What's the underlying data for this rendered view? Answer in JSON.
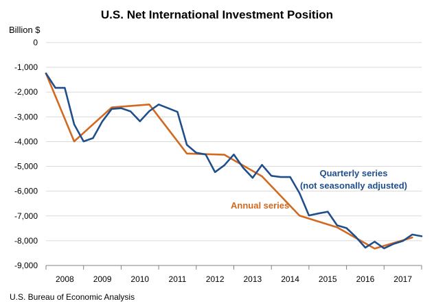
{
  "chart_data": {
    "type": "line",
    "title": "U.S. Net International Investment Position",
    "ylabel": "Billion $",
    "ylim": [
      -9000,
      0
    ],
    "yticks": [
      0,
      -1000,
      -2000,
      -3000,
      -4000,
      -5000,
      -6000,
      -7000,
      -8000,
      -9000
    ],
    "ytick_labels": [
      "0",
      "-1,000",
      "-2,000",
      "-3,000",
      "-4,000",
      "-5,000",
      "-6,000",
      "-7,000",
      "-8,000",
      "-9,000"
    ],
    "x_categories": [
      "2008",
      "2009",
      "2010",
      "2011",
      "2012",
      "2013",
      "2014",
      "2015",
      "2016",
      "2017"
    ],
    "x_range": [
      2008,
      2018
    ],
    "series": [
      {
        "name": "Quarterly series (not seasonally adjusted)",
        "label_lines": [
          "Quarterly series",
          "(not seasonally adjusted)"
        ],
        "color": "#1f4e8c",
        "x": [
          2008.0,
          2008.25,
          2008.5,
          2008.75,
          2009.0,
          2009.25,
          2009.5,
          2009.75,
          2010.0,
          2010.25,
          2010.5,
          2010.75,
          2011.0,
          2011.25,
          2011.5,
          2011.75,
          2012.0,
          2012.25,
          2012.5,
          2012.75,
          2013.0,
          2013.25,
          2013.5,
          2013.75,
          2014.0,
          2014.25,
          2014.5,
          2014.75,
          2015.0,
          2015.25,
          2015.5,
          2015.75,
          2016.0,
          2016.25,
          2016.5,
          2016.75,
          2017.0,
          2017.25,
          2017.5,
          2017.75,
          2018.0
        ],
        "values": [
          -1250,
          -1830,
          -1830,
          -3300,
          -3990,
          -3860,
          -3180,
          -2680,
          -2650,
          -2780,
          -3180,
          -2770,
          -2500,
          -2650,
          -2800,
          -4130,
          -4450,
          -4520,
          -5230,
          -4950,
          -4520,
          -5060,
          -5460,
          -4940,
          -5380,
          -5430,
          -5430,
          -6080,
          -6980,
          -6900,
          -6830,
          -7380,
          -7490,
          -7850,
          -8280,
          -8040,
          -8310,
          -8130,
          -8010,
          -7750,
          -7820
        ]
      },
      {
        "name": "Annual series",
        "label": "Annual series",
        "color": "#d2691e",
        "x": [
          2008.0,
          2008.75,
          2009.75,
          2010.75,
          2011.75,
          2012.75,
          2013.75,
          2014.75,
          2015.75,
          2016.75,
          2017.75
        ],
        "values": [
          -1250,
          -3990,
          -2620,
          -2500,
          -4480,
          -4530,
          -5400,
          -6990,
          -7460,
          -8320,
          -7870
        ]
      }
    ]
  },
  "source": "U.S. Bureau of Economic Analysis"
}
